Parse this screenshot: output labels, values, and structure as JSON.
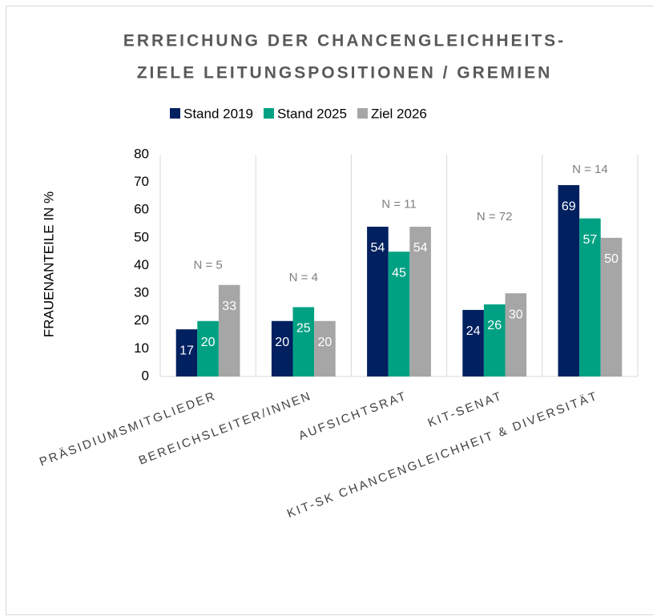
{
  "chart_data": {
    "type": "bar",
    "title": [
      "ERREICHUNG DER CHANCENGLEICHHEITS-",
      "ZIELE LEITUNGSPOSITIONEN / GREMIEN"
    ],
    "y_label": "FRAUENANTEILE IN %",
    "categories": [
      "PRÄSIDIUMSMITGLIEDER",
      "BEREICHSLEITER/INNEN",
      "AUFSICHTSRAT",
      "KIT-SENAT",
      "KIT-SK CHANCENGLEICHHEIT & DIVERSITÄT"
    ],
    "series": [
      {
        "name": "Stand 2019",
        "color": "#002060",
        "values": [
          17,
          20,
          54,
          24,
          69
        ]
      },
      {
        "name": "Stand 2025",
        "color": "#00a183",
        "values": [
          20,
          25,
          45,
          26,
          57
        ]
      },
      {
        "name": "Ziel 2026",
        "color": "#a6a6a6",
        "values": [
          33,
          20,
          54,
          30,
          50
        ]
      }
    ],
    "annotations": [
      {
        "text": "N = 5",
        "category": 0,
        "y": 40
      },
      {
        "text": "N = 4",
        "category": 1,
        "y": 35.5
      },
      {
        "text": "N = 11",
        "category": 2,
        "y": 62
      },
      {
        "text": "N = 72",
        "category": 3,
        "y": 57.5
      },
      {
        "text": "N = 14",
        "category": 4,
        "y": 74.5
      }
    ],
    "ylim": [
      0,
      80
    ],
    "yticks": [
      0,
      10,
      20,
      30,
      40,
      50,
      60,
      70,
      80
    ],
    "legend": "top",
    "data_labels": true,
    "category_dividers": true
  }
}
